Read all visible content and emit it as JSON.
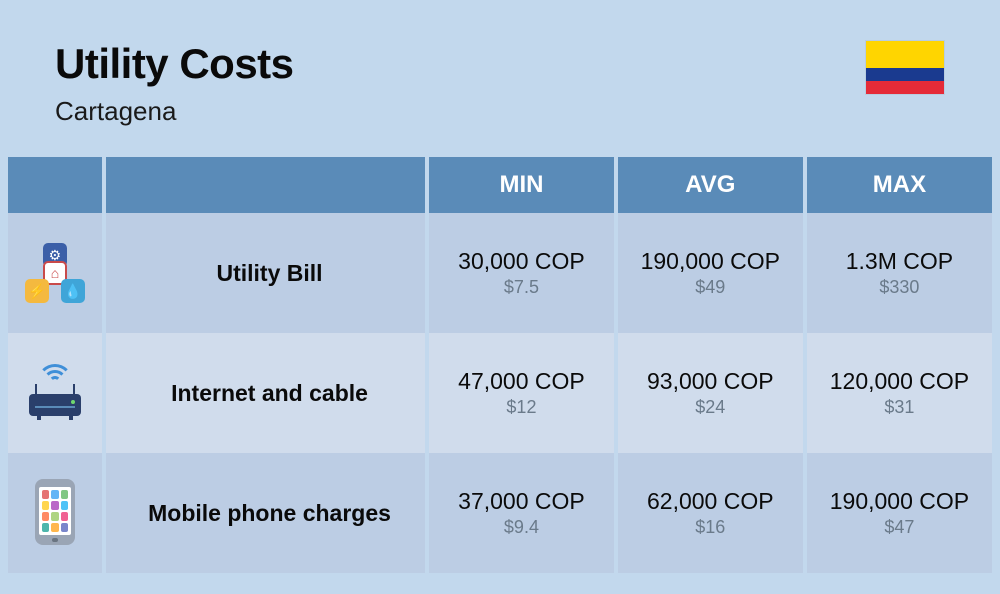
{
  "header": {
    "title": "Utility Costs",
    "subtitle": "Cartagena",
    "flag_colors": {
      "top": "#ffd500",
      "mid": "#1a3a8f",
      "bot": "#e52b38"
    }
  },
  "table": {
    "columns": [
      "",
      "",
      "MIN",
      "AVG",
      "MAX"
    ],
    "header_bg": "#5a8bb8",
    "header_fg": "#ffffff",
    "row_bg_a": "#bccde4",
    "row_bg_b": "#d0dcec",
    "rows": [
      {
        "icon": "utility-icon",
        "label": "Utility Bill",
        "min_main": "30,000 COP",
        "min_sub": "$7.5",
        "avg_main": "190,000 COP",
        "avg_sub": "$49",
        "max_main": "1.3M COP",
        "max_sub": "$330"
      },
      {
        "icon": "router-icon",
        "label": "Internet and cable",
        "min_main": "47,000 COP",
        "min_sub": "$12",
        "avg_main": "93,000 COP",
        "avg_sub": "$24",
        "max_main": "120,000 COP",
        "max_sub": "$31"
      },
      {
        "icon": "phone-icon",
        "label": "Mobile phone charges",
        "min_main": "37,000 COP",
        "min_sub": "$9.4",
        "avg_main": "62,000 COP",
        "avg_sub": "$16",
        "max_main": "190,000 COP",
        "max_sub": "$47"
      }
    ]
  },
  "phone_app_colors": [
    "#e57373",
    "#64b5f6",
    "#81c784",
    "#ffd54f",
    "#ba68c8",
    "#4fc3f7",
    "#ff8a65",
    "#aed581",
    "#f06292",
    "#4db6ac",
    "#ffb74d",
    "#7986cb"
  ],
  "background_color": "#c2d8ed",
  "title_fontsize": 42,
  "subtitle_fontsize": 26,
  "cell_main_fontsize": 23,
  "cell_sub_fontsize": 18,
  "cell_sub_color": "#6a7a8a"
}
